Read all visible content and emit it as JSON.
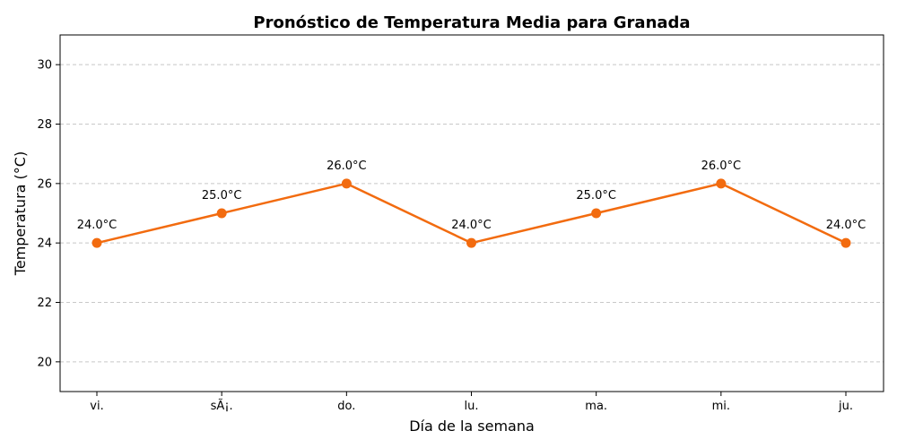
{
  "chart_data": {
    "type": "line",
    "title": "Pronóstico de Temperatura Media para Granada",
    "xlabel": "Día de la semana",
    "ylabel": "Temperatura (°C)",
    "categories": [
      "vi.",
      "sÃ¡.",
      "do.",
      "lu.",
      "ma.",
      "mi.",
      "ju."
    ],
    "series": [
      {
        "values": [
          24.0,
          25.0,
          26.0,
          24.0,
          25.0,
          26.0,
          24.0
        ],
        "color": "#f26b0f"
      }
    ],
    "data_labels": [
      "24.0°C",
      "25.0°C",
      "26.0°C",
      "24.0°C",
      "25.0°C",
      "26.0°C",
      "24.0°C"
    ],
    "ylim": [
      19,
      31
    ],
    "yticks": [
      "20",
      "22",
      "24",
      "26",
      "28",
      "30"
    ],
    "grid": "y-dashed",
    "legend": "none"
  }
}
